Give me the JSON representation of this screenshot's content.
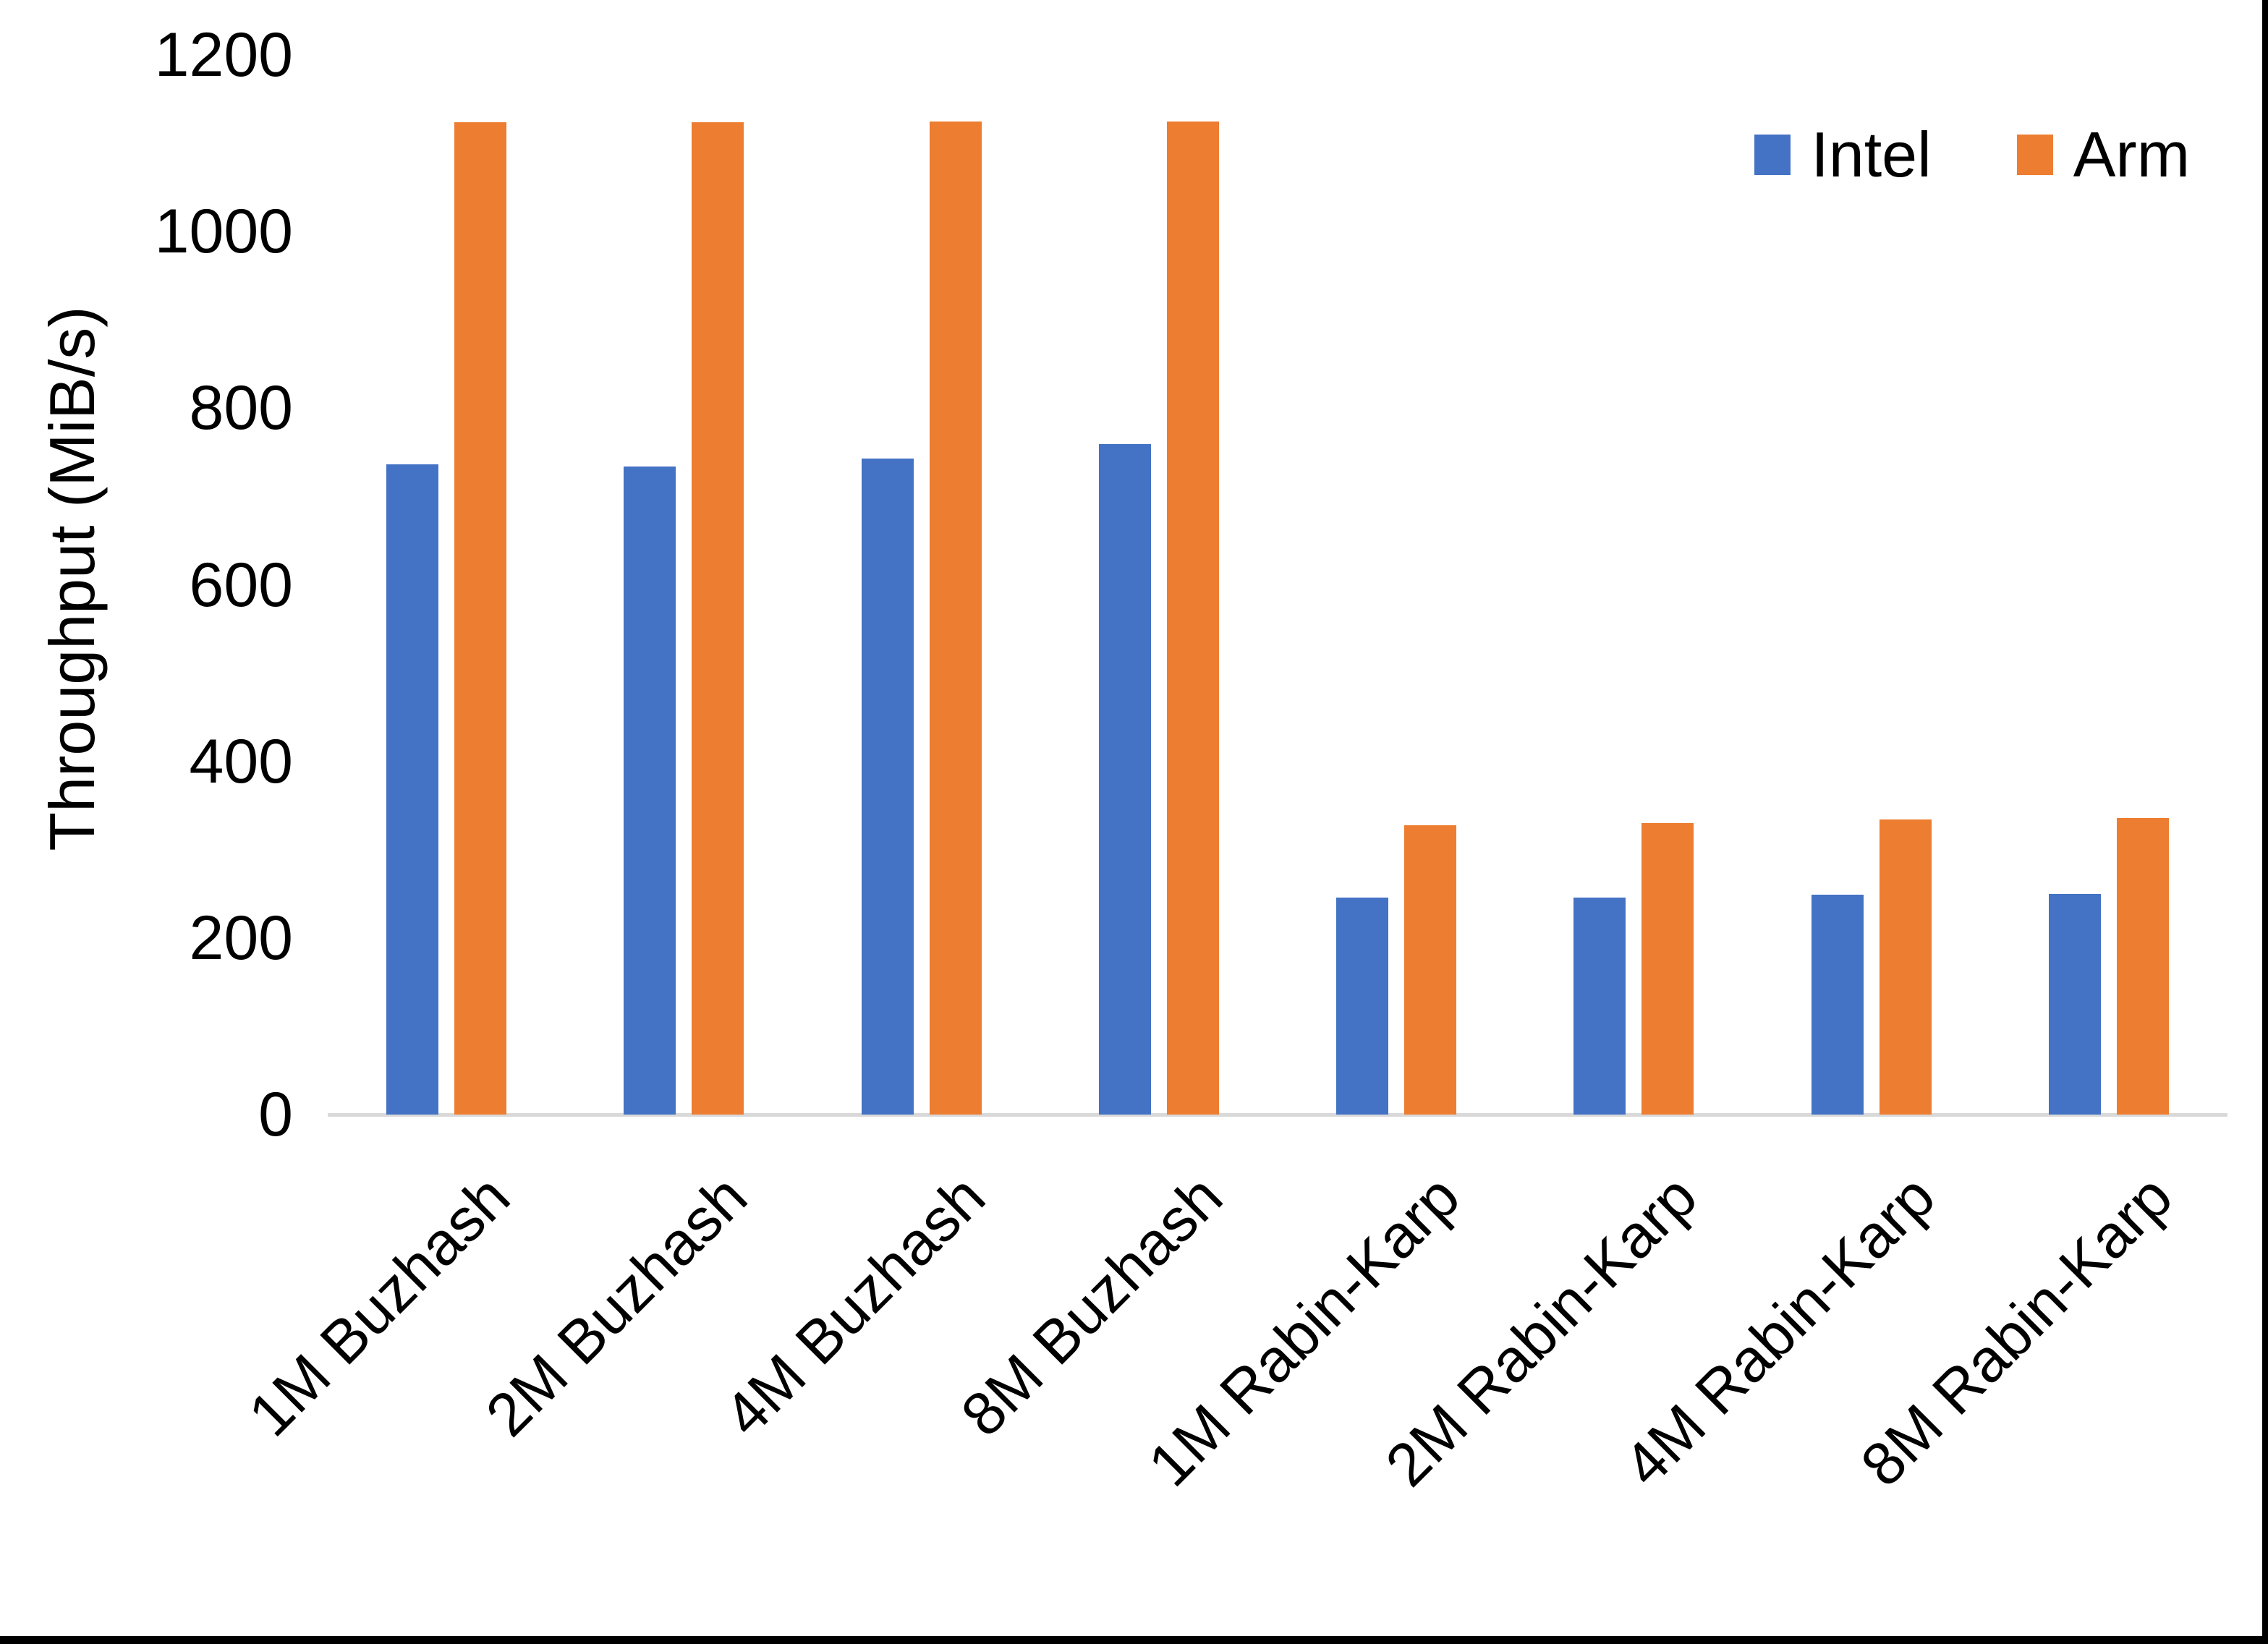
{
  "chart_data": {
    "type": "bar",
    "title": "",
    "ylabel": "Throughput (MiB/s)",
    "xlabel": "",
    "categories": [
      "1M Buzhash",
      "2M Buzhash",
      "4M Buzhash",
      "8M Buzhash",
      "1M Rabin-Karp",
      "2M Rabin-Karp",
      "4M Rabin-Karp",
      "8M Rabin-Karp"
    ],
    "series": [
      {
        "name": "Intel",
        "color": "#4472C4",
        "values": [
          736,
          734,
          743,
          759,
          246,
          246,
          249,
          250
        ]
      },
      {
        "name": "Arm",
        "color": "#ED7D31",
        "values": [
          1124,
          1124,
          1125,
          1125,
          328,
          330,
          334,
          336
        ]
      }
    ],
    "ylim": [
      0,
      1200
    ],
    "yticks": [
      0,
      200,
      400,
      600,
      800,
      1000,
      1200
    ],
    "grid": false,
    "legend_position": "top-right",
    "axis_line_color": "#D9D9D9"
  }
}
